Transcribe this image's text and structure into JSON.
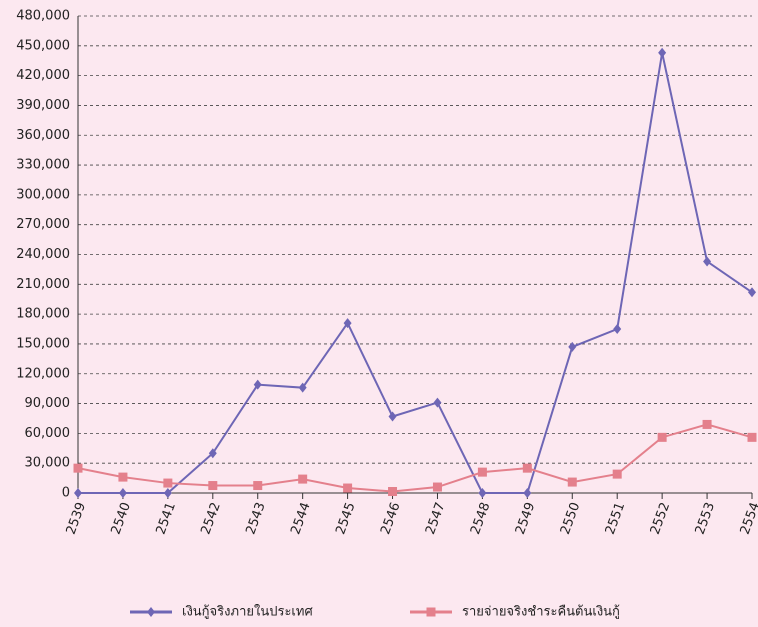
{
  "chart_data": {
    "type": "line",
    "categories": [
      "2539",
      "2540",
      "2541",
      "2542",
      "2543",
      "2544",
      "2545",
      "2546",
      "2547",
      "2548",
      "2549",
      "2550",
      "2551",
      "2552",
      "2553",
      "2554"
    ],
    "series": [
      {
        "name": "เงินกู้จริงภายในประเทศ",
        "color": "#6e66b5",
        "marker": "diamond",
        "values": [
          0,
          0,
          0,
          40000,
          109000,
          106000,
          171000,
          77000,
          91000,
          0,
          0,
          147000,
          165000,
          443000,
          233000,
          202000
        ]
      },
      {
        "name": "รายจ่ายจริงชำระคืนต้นเงินกู้",
        "color": "#e4808c",
        "marker": "square",
        "values": [
          25000,
          16000,
          10000,
          7500,
          7500,
          14000,
          5000,
          1500,
          6000,
          21000,
          25000,
          11000,
          19000,
          56000,
          69000,
          56000
        ]
      }
    ],
    "ylim": [
      0,
      480000
    ],
    "yticks": [
      0,
      {
        "value": 30000,
        "label": "30,000"
      },
      {
        "value": 60000,
        "label": "60,000"
      },
      {
        "value": 90000,
        "label": "90,000"
      },
      {
        "value": 120000,
        "label": "120,000"
      },
      {
        "value": 150000,
        "label": "150,000"
      },
      {
        "value": 180000,
        "label": "180,000"
      },
      {
        "value": 210000,
        "label": "210,000"
      },
      {
        "value": 240000,
        "label": "240,000"
      },
      {
        "value": 270000,
        "label": "270,000"
      },
      {
        "value": 300000,
        "label": "300,000"
      },
      {
        "value": 330000,
        "label": "330,000"
      },
      {
        "value": 360000,
        "label": "360,000"
      },
      {
        "value": 390000,
        "label": "390,000"
      },
      {
        "value": 420000,
        "label": "420,000"
      },
      {
        "value": 450000,
        "label": "450,000"
      },
      {
        "value": 480000,
        "label": "480,000"
      }
    ],
    "grid": true,
    "legend": "bottom"
  }
}
